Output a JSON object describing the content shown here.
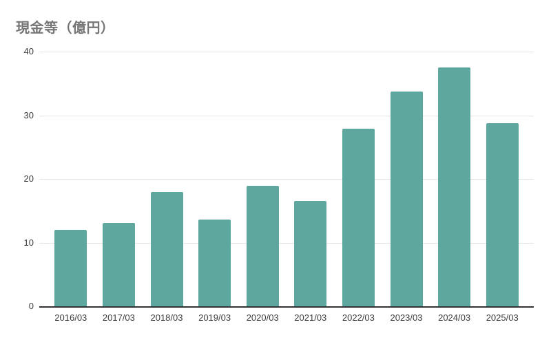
{
  "chart_data": {
    "type": "bar",
    "title": "現金等（億円）",
    "categories": [
      "2016/03",
      "2017/03",
      "2018/03",
      "2019/03",
      "2020/03",
      "2021/03",
      "2022/03",
      "2023/03",
      "2024/03",
      "2025/03"
    ],
    "values": [
      12.0,
      13.1,
      17.9,
      13.6,
      18.9,
      16.5,
      27.9,
      33.7,
      37.5,
      28.8
    ],
    "xlabel": "",
    "ylabel": "",
    "ylim": [
      0,
      40
    ],
    "yticks": [
      0,
      10,
      20,
      30,
      40
    ],
    "grid": true,
    "legend_position": "none",
    "bar_color": "#5EA79E",
    "gridline_color": "#E4E4E4",
    "axis_line_color": "#333333",
    "tick_label_color": "#3C3C3C",
    "title_color": "#757575",
    "background_color": "#FFFFFF"
  }
}
